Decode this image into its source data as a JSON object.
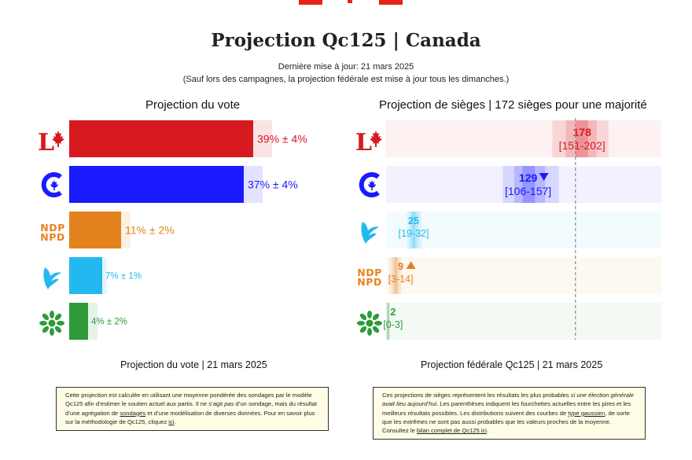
{
  "header": {
    "title": "Projection Qc125 | Canada",
    "updated": "Dernière mise à jour: 21 mars 2025",
    "note": "(Sauf lors des campagnes, la projection fédérale est mise à jour tous les dimanches.)"
  },
  "colors": {
    "flag_red": "#e2231a",
    "lpc": "#d71920",
    "cpc": "#1a1aff",
    "ndp": "#e3821c",
    "bq": "#23b8f0",
    "gpc": "#2e9b38",
    "majority_line": "#888888"
  },
  "parties": [
    {
      "key": "lpc",
      "logo_icon": "liberal-logo-icon",
      "logo_text": "L"
    },
    {
      "key": "cpc",
      "logo_icon": "conservative-logo-icon"
    },
    {
      "key": "ndp",
      "logo_icon": "ndp-logo-icon",
      "logo_text_1": "NDP",
      "logo_text_2": "NPD"
    },
    {
      "key": "bq",
      "logo_icon": "bloc-logo-icon"
    },
    {
      "key": "gpc",
      "logo_icon": "green-logo-icon"
    }
  ],
  "vote_panel": {
    "title": "Projection du vote",
    "footer": "Projection du vote | 21 mars 2025",
    "note_parts": [
      "Cette projection est calculée en utilisant une moyenne pondérée des sondages par le modèle Qc125 afin d’estimer le soutien actuel aux partis. Il ne s’agit ",
      "pas",
      " d’un sondage, mais du résultat d’une agrégation de ",
      "sondages",
      " et d’une modélisation de diverses données. Pour en savoir plus sur la méthodologie de Qc125, cliquez ",
      "ici",
      "."
    ]
  },
  "seat_panel": {
    "title": "Projection de sièges | 172 sièges pour une majorité",
    "footer": "Projection fédérale Qc125 | 21 mars 2025",
    "note_parts": [
      "Ces projections de sièges représentent les résultats les plus probables ",
      "si une élection générale avait lieu aujourd’hui",
      ". Les parenthèses indiquent les fourchettes actuelles entre les pires et les meilleurs résultats possibles. Les distributions suivent des courbes de ",
      "type gaussien",
      ", de sorte que les extrêmes ne sont pas aussi probables que les valeurs proches de la moyenne. Consultez le ",
      "bilan complet de Qc125 ici",
      "."
    ]
  },
  "chart_data": [
    {
      "type": "bar",
      "orientation": "horizontal",
      "title": "Projection du vote",
      "unit": "%",
      "categories": [
        "PLC",
        "PCC",
        "NPD",
        "BQ",
        "PVC"
      ],
      "series": [
        {
          "values": [
            39,
            37,
            11,
            7,
            4
          ],
          "margin": [
            4,
            4,
            2,
            1,
            2
          ],
          "labels": [
            "39% ± 4%",
            "37% ± 4%",
            "11% ± 2%",
            "7% ± 1%",
            "4% ± 2%"
          ]
        }
      ],
      "xlim": [
        0,
        50
      ]
    },
    {
      "type": "bar",
      "orientation": "horizontal",
      "title": "Projection de sièges | 172 sièges pour une majorité",
      "categories": [
        "PLC",
        "PCC",
        "BQ",
        "NPD",
        "PVC"
      ],
      "series": [
        {
          "values": [
            178,
            129,
            25,
            9,
            2
          ],
          "low": [
            151,
            106,
            19,
            3,
            0
          ],
          "high": [
            202,
            157,
            32,
            14,
            3
          ],
          "trend": [
            "",
            "down",
            "",
            "up",
            ""
          ],
          "labels": [
            "178",
            "129",
            "25",
            "9",
            "2"
          ],
          "range_labels": [
            "[151-202]",
            "[106-157]",
            "[19-32]",
            "[3-14]",
            "[0-3]"
          ]
        }
      ],
      "majority_threshold": 172,
      "xlim": [
        0,
        250
      ]
    }
  ]
}
